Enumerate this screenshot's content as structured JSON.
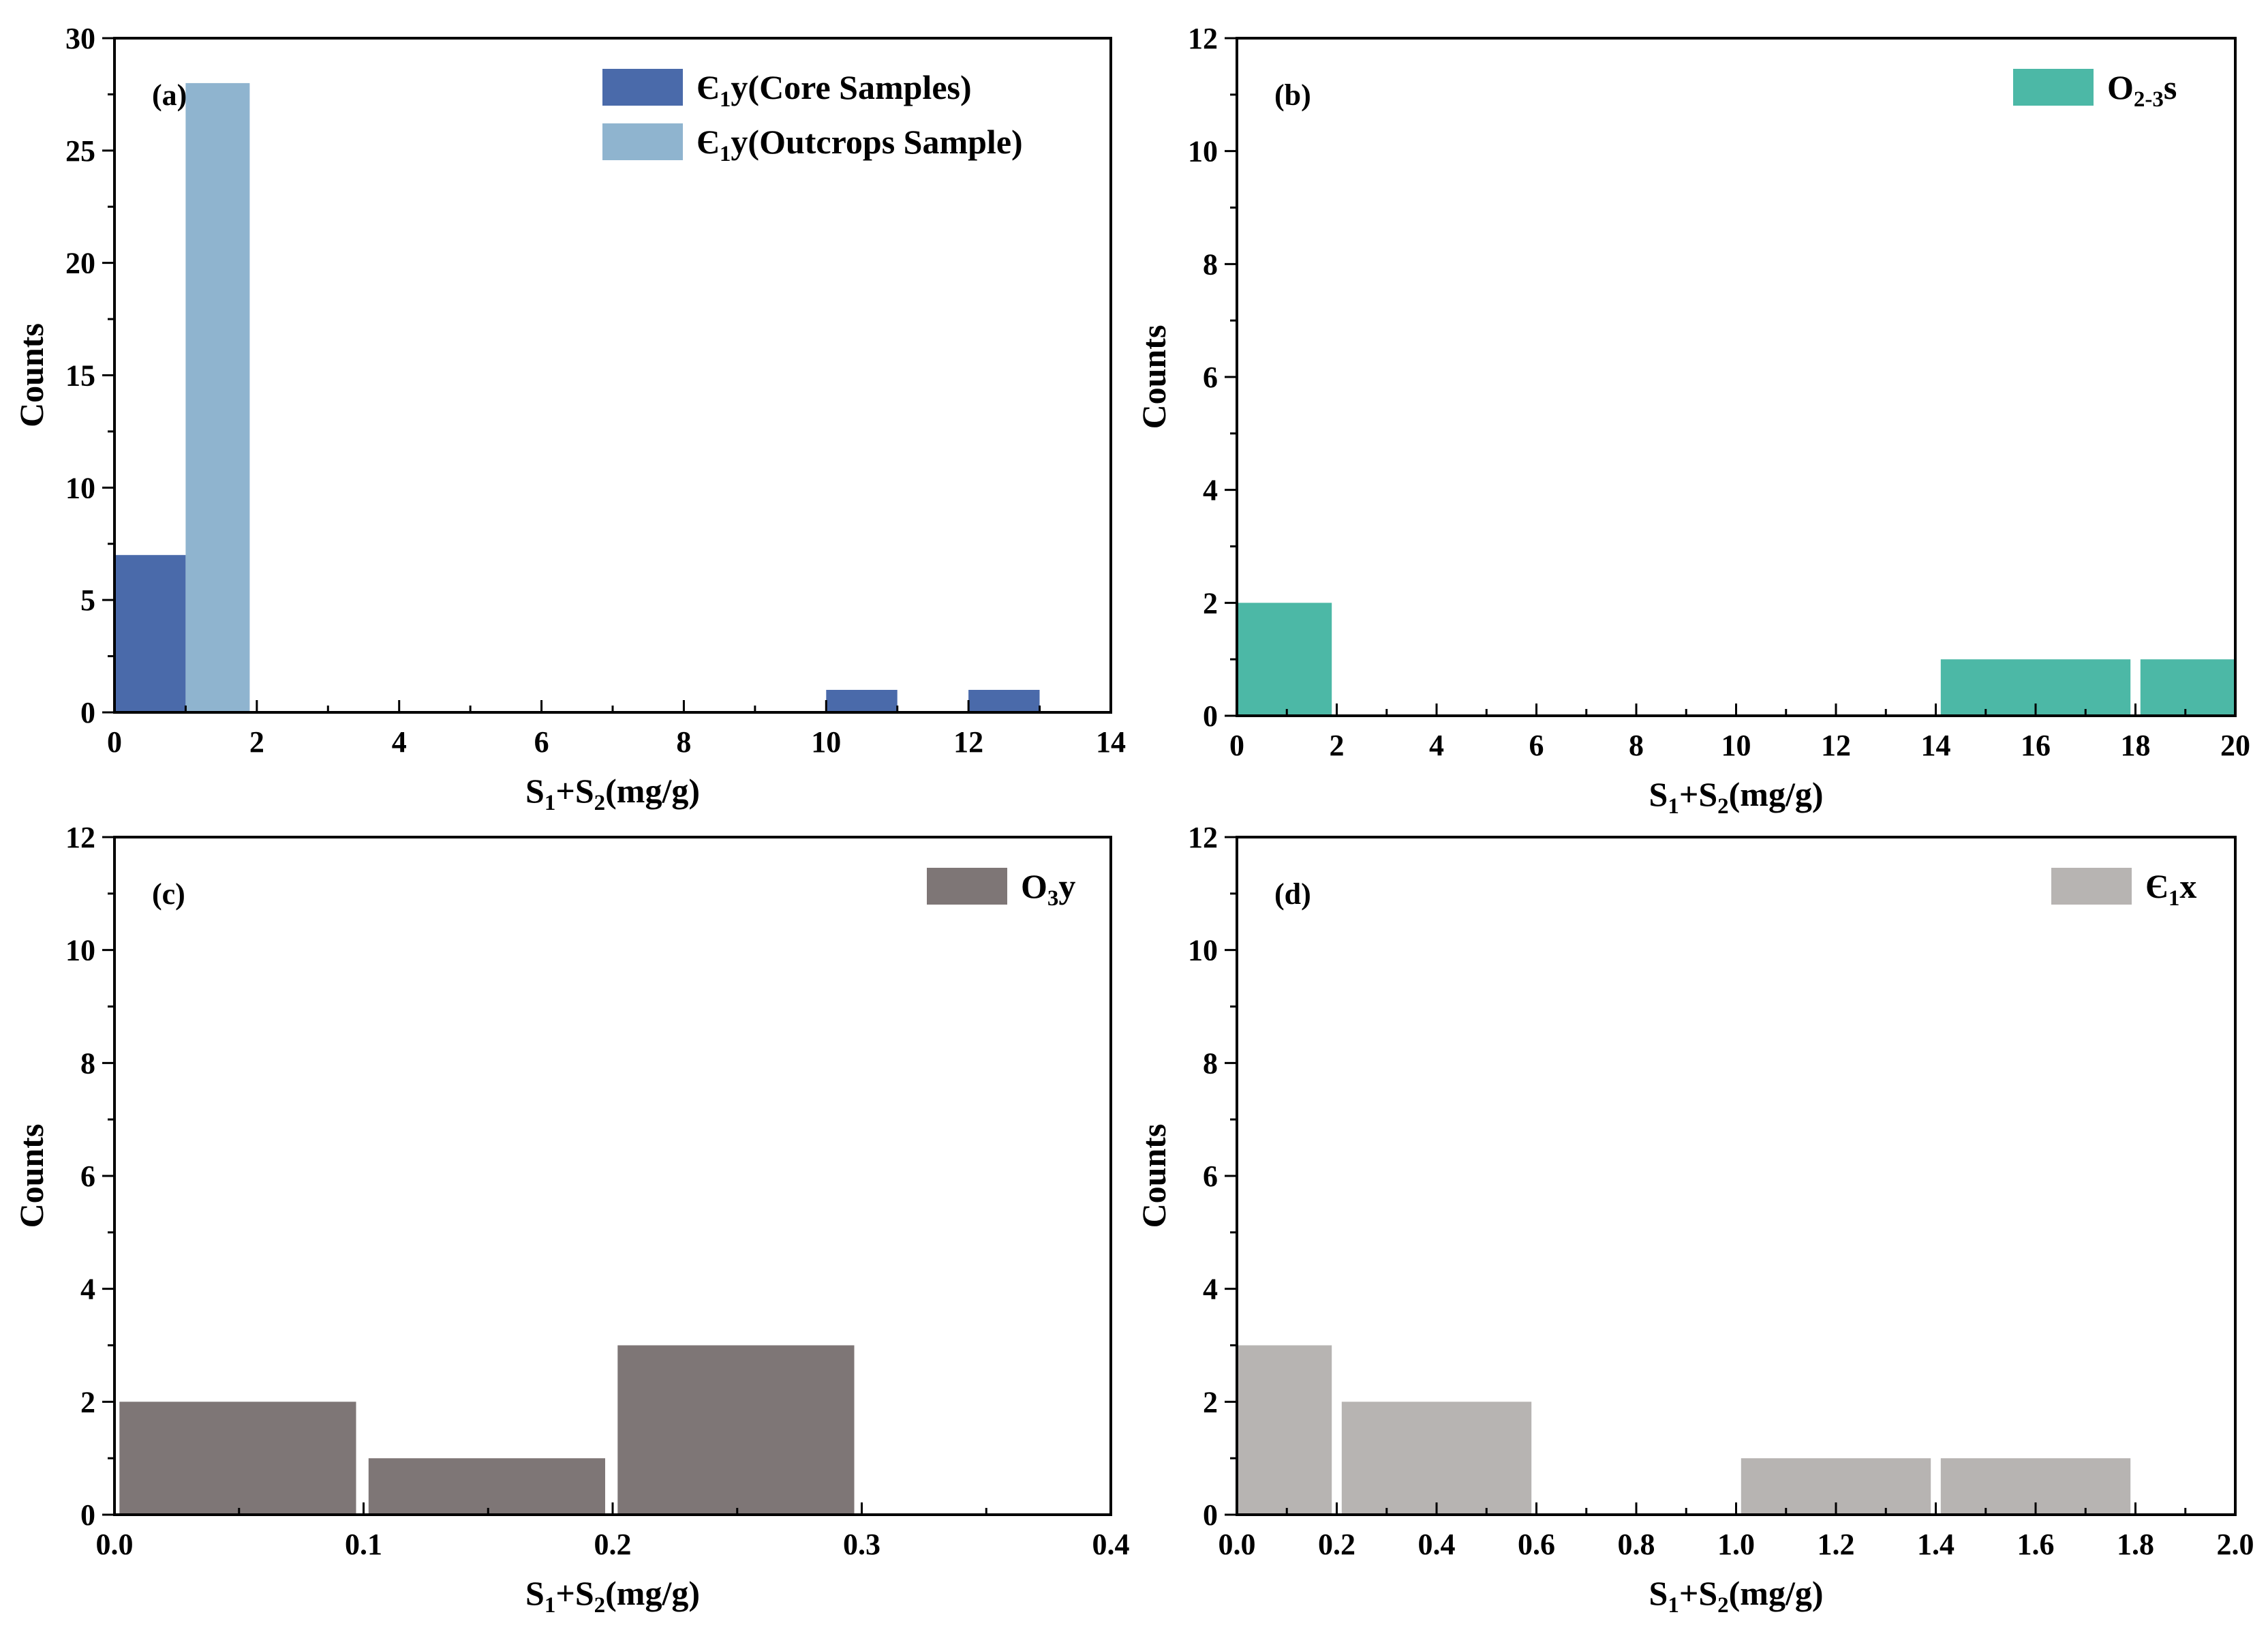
{
  "chart_data": [
    {
      "type": "bar",
      "panel_label": "(a)",
      "xlabel": "S₁+S₂(mg/g)",
      "ylabel": "Counts",
      "xlim": [
        0,
        14
      ],
      "ylim": [
        0,
        30
      ],
      "xticks": [
        "0",
        "2",
        "4",
        "6",
        "8",
        "10",
        "12",
        "14"
      ],
      "yticks": [
        "0",
        "5",
        "10",
        "15",
        "20",
        "25",
        "30"
      ],
      "legend": {
        "placement": "top-right",
        "entries": [
          "Є₁y(Core Samples)",
          "Є₁y(Outcrops Sample)"
        ]
      },
      "series": [
        {
          "name": "Є₁y(Core Samples)",
          "color": "#4a6aaa",
          "bins": [
            {
              "x0": 0,
              "x1": 1,
              "value": 7
            },
            {
              "x0": 10,
              "x1": 11,
              "value": 1
            },
            {
              "x0": 12,
              "x1": 13,
              "value": 1
            }
          ]
        },
        {
          "name": "Є₁y(Outcrops Sample)",
          "color": "#8fb4cf",
          "bins": [
            {
              "x0": 1,
              "x1": 1.9,
              "value": 28
            }
          ]
        }
      ]
    },
    {
      "type": "bar",
      "panel_label": "(b)",
      "xlabel": "S₁+S₂(mg/g)",
      "ylabel": "Counts",
      "xlim": [
        0,
        20
      ],
      "ylim": [
        0,
        12
      ],
      "xticks": [
        "0",
        "2",
        "4",
        "6",
        "8",
        "10",
        "12",
        "14",
        "16",
        "18",
        "20"
      ],
      "yticks": [
        "0",
        "2",
        "4",
        "6",
        "8",
        "10",
        "12"
      ],
      "legend": {
        "placement": "top-right",
        "entries": [
          "O₂₋₃s"
        ]
      },
      "series": [
        {
          "name": "O₂₋₃s",
          "color": "#4cb8a6",
          "bins": [
            {
              "x0": 0,
              "x1": 1.9,
              "value": 2
            },
            {
              "x0": 14.1,
              "x1": 17.9,
              "value": 1
            },
            {
              "x0": 18.1,
              "x1": 20,
              "value": 1
            }
          ]
        }
      ]
    },
    {
      "type": "bar",
      "panel_label": "(c)",
      "xlabel": "S₁+S₂(mg/g)",
      "ylabel": "Counts",
      "xlim": [
        0,
        0.4
      ],
      "ylim": [
        0,
        12
      ],
      "xticks": [
        "0.0",
        "0.1",
        "0.2",
        "0.3",
        "0.4"
      ],
      "yticks": [
        "0",
        "2",
        "4",
        "6",
        "8",
        "10",
        "12"
      ],
      "legend": {
        "placement": "top-right",
        "entries": [
          "O₃y"
        ]
      },
      "series": [
        {
          "name": "O₃y",
          "color": "#7e7676",
          "bins": [
            {
              "x0": 0.002,
              "x1": 0.097,
              "value": 2
            },
            {
              "x0": 0.102,
              "x1": 0.197,
              "value": 1
            },
            {
              "x0": 0.202,
              "x1": 0.297,
              "value": 3
            }
          ]
        }
      ]
    },
    {
      "type": "bar",
      "panel_label": "(d)",
      "xlabel": "S₁+S₂(mg/g)",
      "ylabel": "Counts",
      "xlim": [
        0,
        2.0
      ],
      "ylim": [
        0,
        12
      ],
      "xticks": [
        "0.0",
        "0.2",
        "0.4",
        "0.6",
        "0.8",
        "1.0",
        "1.2",
        "1.4",
        "1.6",
        "1.8",
        "2.0"
      ],
      "yticks": [
        "0",
        "2",
        "4",
        "6",
        "8",
        "10",
        "12"
      ],
      "legend": {
        "placement": "top-right",
        "entries": [
          "Є₁x"
        ]
      },
      "series": [
        {
          "name": "Є₁x",
          "color": "#b7b4b2",
          "bins": [
            {
              "x0": 0,
              "x1": 0.19,
              "value": 3
            },
            {
              "x0": 0.21,
              "x1": 0.59,
              "value": 2
            },
            {
              "x0": 1.01,
              "x1": 1.39,
              "value": 1
            },
            {
              "x0": 1.41,
              "x1": 1.79,
              "value": 1
            }
          ]
        }
      ]
    }
  ]
}
